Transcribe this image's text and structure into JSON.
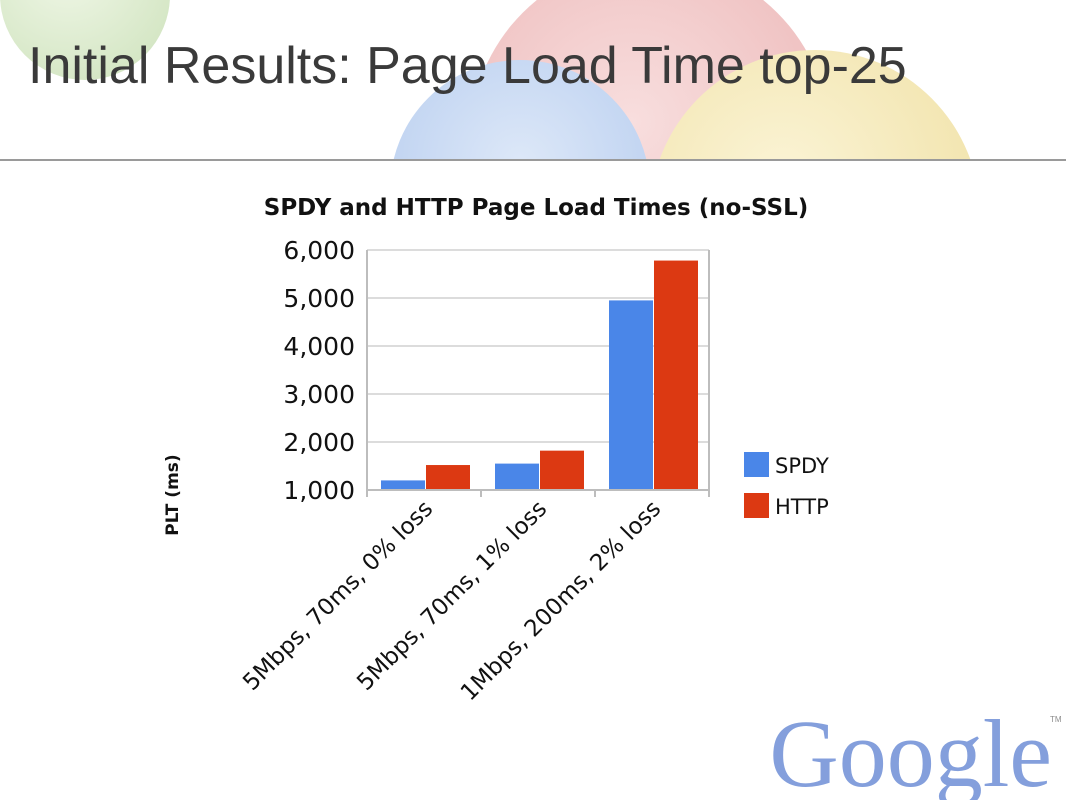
{
  "slide": {
    "title": "Initial Results: Page Load Time top-25"
  },
  "logo": {
    "text": "Google",
    "trademark": "TM"
  },
  "colors": {
    "spdy": "#4a86e8",
    "http": "#dc3912",
    "grid": "#dcdcdc",
    "axis": "#bdbdbd"
  },
  "chart_data": {
    "type": "bar",
    "title": "SPDY and HTTP Page Load Times (no-SSL)",
    "xlabel": "",
    "ylabel": "PLT (ms)",
    "ylim": [
      1000,
      6000
    ],
    "yticks": [
      1000,
      2000,
      3000,
      4000,
      5000,
      6000
    ],
    "ytick_labels": [
      "1,000",
      "2,000",
      "3,000",
      "4,000",
      "5,000",
      "6,000"
    ],
    "categories": [
      "5Mbps, 70ms, 0% loss",
      "5Mbps, 70ms, 1% loss",
      "1Mbps, 200ms, 2% loss"
    ],
    "series": [
      {
        "name": "SPDY",
        "color": "#4a86e8",
        "values": [
          1200,
          1550,
          4950
        ]
      },
      {
        "name": "HTTP",
        "color": "#dc3912",
        "values": [
          1520,
          1820,
          5780
        ]
      }
    ],
    "grid": true,
    "legend": "right"
  }
}
